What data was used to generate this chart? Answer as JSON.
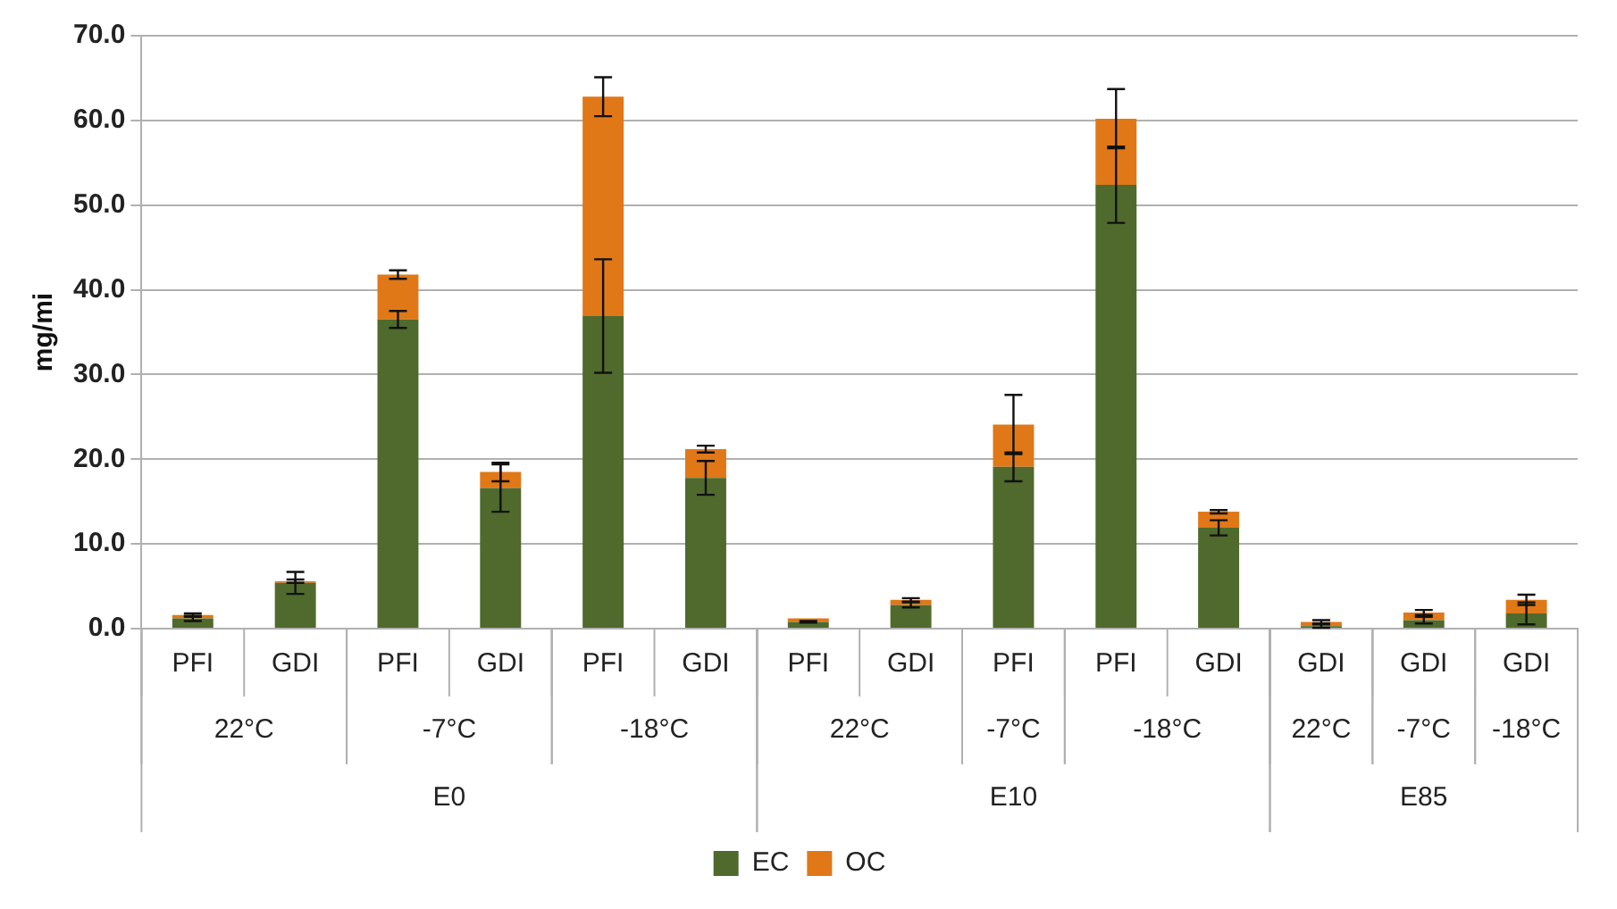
{
  "chart_data": {
    "type": "bar",
    "stacked": true,
    "ylabel": "mg/mi",
    "categories": [
      "PFI",
      "GDI",
      "PFI",
      "GDI",
      "PFI",
      "GDI",
      "PFI",
      "GDI",
      "PFI",
      "PFI",
      "GDI",
      "GDI",
      "GDI",
      "GDI"
    ],
    "series": [
      {
        "name": "EC",
        "color": "#4f6a2c",
        "values": [
          1.2,
          5.4,
          36.5,
          16.6,
          36.9,
          17.8,
          0.8,
          2.8,
          19.1,
          52.4,
          11.9,
          0.3,
          1.0,
          1.8
        ],
        "errors": [
          0.3,
          1.3,
          1.0,
          2.8,
          6.7,
          2.0,
          0.1,
          0.3,
          1.7,
          4.5,
          0.9,
          0.2,
          0.4,
          1.3
        ]
      },
      {
        "name": "OC",
        "color": "#e07818",
        "values": [
          0.4,
          0.2,
          5.3,
          1.9,
          25.9,
          3.4,
          0.4,
          0.6,
          5.0,
          7.8,
          1.9,
          0.5,
          0.9,
          1.6
        ],
        "errors": [
          0.2,
          0.2,
          0.5,
          1.1,
          2.3,
          0.4,
          null,
          0.2,
          3.5,
          3.5,
          0.2,
          0.2,
          0.3,
          0.6
        ]
      }
    ],
    "annotations": [
      "22°C",
      "-7°C",
      "-18°C",
      "22°C",
      "-7°C",
      "-18°C",
      "22°C",
      "-7°C",
      "-18°C",
      "E0",
      "E10",
      "E85"
    ],
    "ylim": [
      0,
      70
    ],
    "yticks": [
      {
        "value": 0,
        "label": "0.0"
      },
      {
        "value": 10,
        "label": "10.0"
      },
      {
        "value": 20,
        "label": "20.0"
      },
      {
        "value": 30,
        "label": "30.0"
      },
      {
        "value": 40,
        "label": "40.0"
      },
      {
        "value": 50,
        "label": "50.0"
      },
      {
        "value": 60,
        "label": "60.0"
      },
      {
        "value": 70,
        "label": "70.0"
      }
    ],
    "grid": "y",
    "legend": "bottom"
  }
}
